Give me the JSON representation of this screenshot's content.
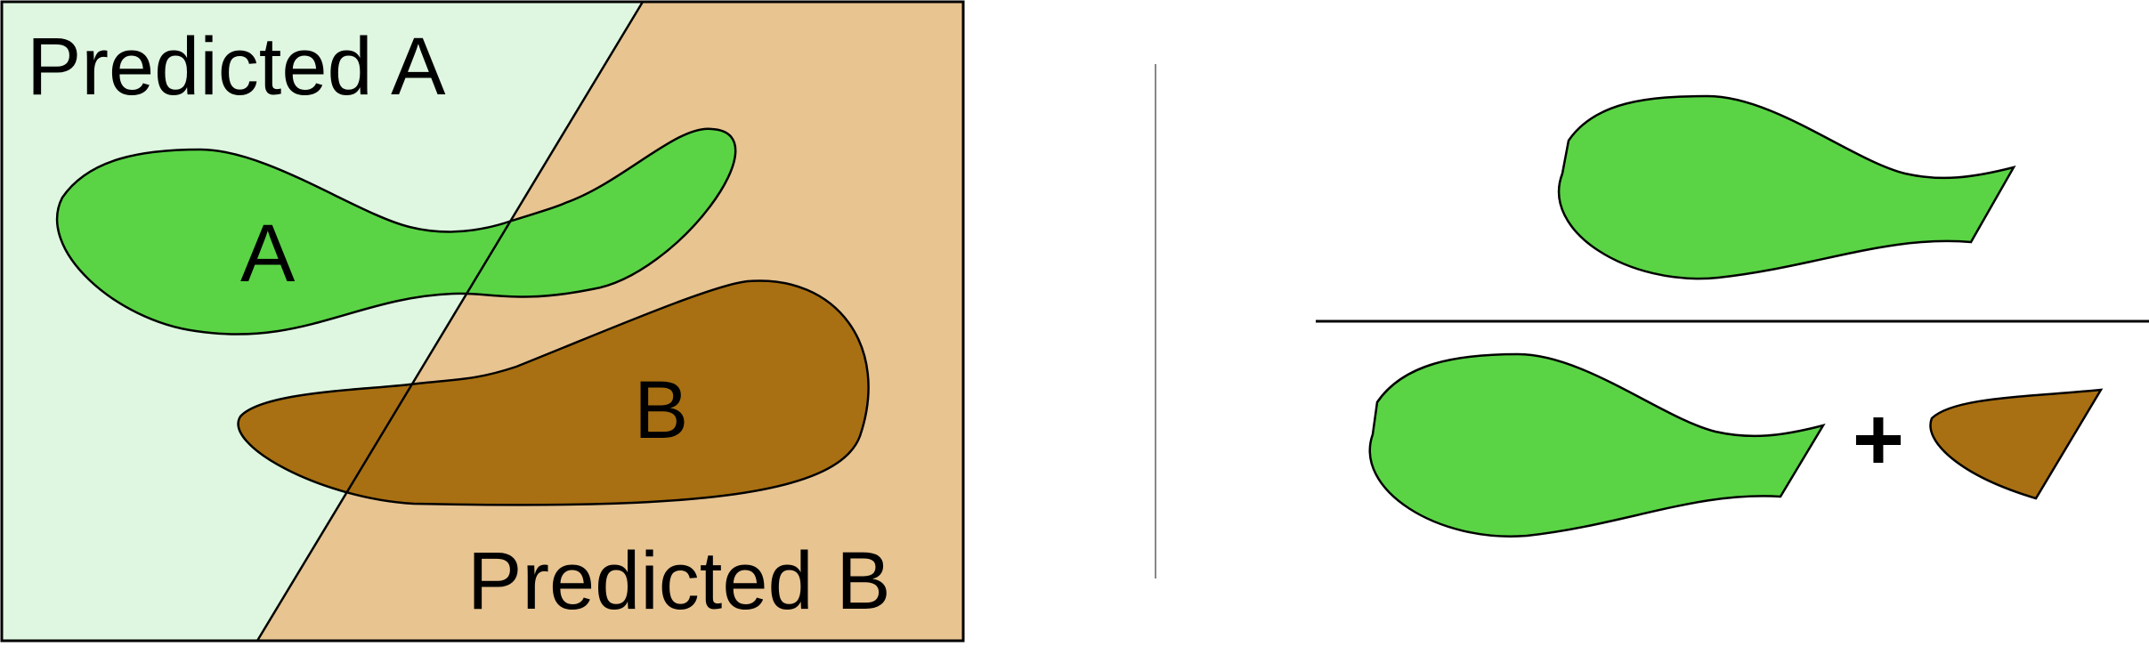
{
  "left_panel": {
    "region_a_label": "Predicted A",
    "region_b_label": "Predicted B",
    "class_a_label": "A",
    "class_b_label": "B"
  },
  "right_panel": {
    "plus_symbol": "+"
  },
  "colors": {
    "predicted_a_bg": "#dff7e0",
    "predicted_b_bg": "#e8c491",
    "class_a_fill": "#5ad445",
    "class_b_fill": "#a87012",
    "outline": "#000000",
    "divider": "#888888"
  }
}
